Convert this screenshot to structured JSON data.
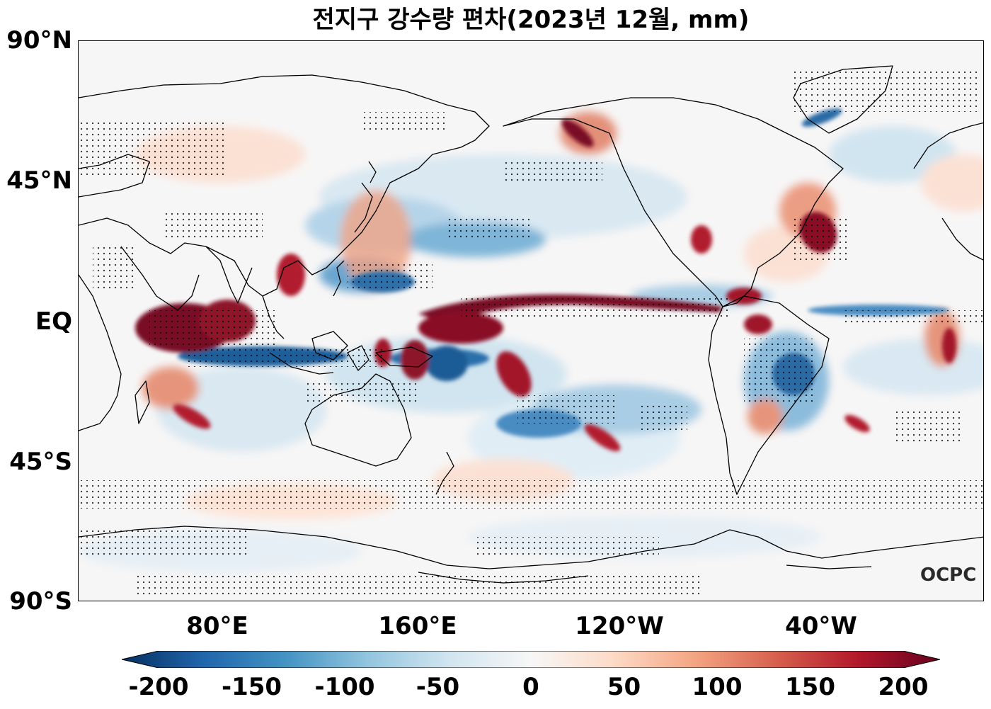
{
  "title": "전지구 강수량 편차(2023년 12월, mm)",
  "logo_text": "OCPC",
  "lat_labels": [
    "90°N",
    "45°N",
    "EQ",
    "45°S",
    "90°S"
  ],
  "lon_labels": [
    "80°E",
    "160°E",
    "120°W",
    "40°W"
  ],
  "colorbar": {
    "ticks": [
      "-200",
      "-150",
      "-100",
      "-50",
      "0",
      "50",
      "100",
      "150",
      "200"
    ],
    "min": -200,
    "max": 200,
    "colors": [
      "#053061",
      "#2166ac",
      "#4393c3",
      "#92c5de",
      "#d1e5f0",
      "#f7f7f7",
      "#fddbc7",
      "#f4a582",
      "#d6604d",
      "#b2182b",
      "#67001f"
    ]
  },
  "map": {
    "projection": "equirectangular",
    "central_longitude": 180,
    "lon_range": [
      24,
      384
    ],
    "lat_range": [
      -90,
      90
    ]
  }
}
